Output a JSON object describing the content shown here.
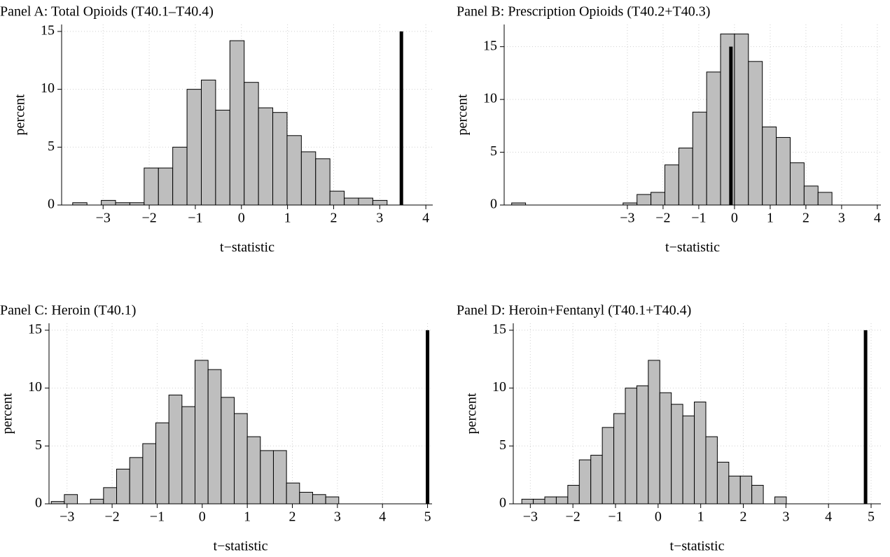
{
  "chart_data": [
    {
      "type": "histogram",
      "title": "Panel A: Total Opioids (T40.1–T40.4)",
      "x_label": "t−statistic",
      "y_label": "percent",
      "bins": [
        -3.66,
        -3.35,
        -3.04,
        -2.73,
        -2.42,
        -2.11,
        -1.8,
        -1.49,
        -1.18,
        -0.87,
        -0.56,
        -0.25,
        0.06,
        0.37,
        0.68,
        0.99,
        1.3,
        1.61,
        1.92,
        2.23,
        2.54,
        2.85,
        3.16
      ],
      "values": [
        0.2,
        0,
        0.4,
        0.2,
        0.2,
        3.2,
        3.2,
        5,
        10,
        10.8,
        8.2,
        14.2,
        10.6,
        8.4,
        8,
        6,
        4.6,
        4,
        1.2,
        0.6,
        0.6,
        0.4
      ],
      "color": "#bebebe",
      "reference_line": 3.47,
      "reference_color": "#000000",
      "xlim": [
        -3.9,
        4.15
      ],
      "ylim": [
        0,
        15.6
      ],
      "xticks": [
        {
          "value": -3,
          "label": "−3"
        },
        {
          "value": -2,
          "label": "−2"
        },
        {
          "value": -1,
          "label": "−1"
        },
        0,
        1,
        2,
        3,
        4
      ],
      "yticks": [
        0,
        5,
        10,
        15
      ],
      "grid": true
    },
    {
      "type": "histogram",
      "title": "Panel B: Prescription Opioids (T40.2+T40.3)",
      "x_label": "t−statistic",
      "y_label": "percent",
      "bins": [
        -6.24,
        -5.85,
        -5.46,
        -5.07,
        -4.68,
        -4.29,
        -3.9,
        -3.51,
        -3.12,
        -2.73,
        -2.34,
        -1.95,
        -1.56,
        -1.17,
        -0.78,
        -0.39,
        0,
        0.39,
        0.78,
        1.17,
        1.56,
        1.95,
        2.34,
        2.73
      ],
      "values": [
        0.2,
        0,
        0,
        0,
        0,
        0,
        0,
        0,
        0.2,
        1.0,
        1.2,
        3.8,
        5.4,
        8.8,
        12.6,
        16.2,
        16.2,
        13.6,
        7.4,
        6.4,
        4.0,
        1.8,
        1.2
      ],
      "color": "#bebebe",
      "reference_line": -0.1,
      "reference_color": "#000000",
      "xlim": [
        -6.45,
        4.1
      ],
      "ylim": [
        0,
        17.1
      ],
      "xticks": [
        {
          "value": -3,
          "label": "−3"
        },
        {
          "value": -2,
          "label": "−2"
        },
        {
          "value": -1,
          "label": "−1"
        },
        0,
        1,
        2,
        3,
        4
      ],
      "yticks": [
        0,
        5,
        10,
        15
      ],
      "grid": true
    },
    {
      "type": "histogram",
      "title": "Panel C: Heroin (T40.1)",
      "x_label": "t−statistic",
      "y_label": "percent",
      "bins": [
        -3.35,
        -3.06,
        -2.77,
        -2.48,
        -2.19,
        -1.9,
        -1.61,
        -1.32,
        -1.03,
        -0.74,
        -0.45,
        -0.16,
        0.13,
        0.42,
        0.71,
        1.0,
        1.29,
        1.58,
        1.87,
        2.16,
        2.45,
        2.74,
        3.03
      ],
      "values": [
        0.2,
        0.8,
        0,
        0.4,
        1.4,
        3.0,
        4.0,
        5.2,
        7.0,
        9.4,
        8.4,
        12.4,
        11.6,
        9.2,
        7.8,
        5.8,
        4.6,
        4.6,
        1.8,
        1.0,
        0.8,
        0.6
      ],
      "color": "#bebebe",
      "reference_line": 5.0,
      "reference_color": "#000000",
      "xlim": [
        -3.4,
        5.1
      ],
      "ylim": [
        0,
        15.6
      ],
      "xticks": [
        {
          "value": -3,
          "label": "−3"
        },
        {
          "value": -2,
          "label": "−2"
        },
        {
          "value": -1,
          "label": "−1"
        },
        0,
        1,
        2,
        3,
        4,
        5
      ],
      "yticks": [
        0,
        5,
        10,
        15
      ],
      "grid": true
    },
    {
      "type": "histogram",
      "title": "Panel D: Heroin+Fentanyl (T40.1+T40.4)",
      "x_label": "t−statistic",
      "y_label": "percent",
      "bins": [
        -3.2,
        -2.93,
        -2.66,
        -2.39,
        -2.12,
        -1.85,
        -1.58,
        -1.31,
        -1.04,
        -0.77,
        -0.5,
        -0.23,
        0.04,
        0.31,
        0.58,
        0.85,
        1.12,
        1.39,
        1.66,
        1.93,
        2.2,
        2.47,
        2.74,
        3.01
      ],
      "values": [
        0.4,
        0.4,
        0.6,
        0.6,
        1.6,
        3.8,
        4.2,
        6.6,
        7.8,
        10,
        10.2,
        12.4,
        9.6,
        8.6,
        7.6,
        8.8,
        5.8,
        3.6,
        2.4,
        2.4,
        1.6,
        0,
        0.6
      ],
      "color": "#bebebe",
      "reference_line": 4.87,
      "reference_color": "#000000",
      "xlim": [
        -3.4,
        5.23
      ],
      "ylim": [
        0,
        15.6
      ],
      "xticks": [
        {
          "value": -3,
          "label": "−3"
        },
        {
          "value": -2,
          "label": "−2"
        },
        {
          "value": -1,
          "label": "−1"
        },
        0,
        1,
        2,
        3,
        4,
        5
      ],
      "yticks": [
        0,
        5,
        10,
        15
      ],
      "grid": true
    }
  ]
}
